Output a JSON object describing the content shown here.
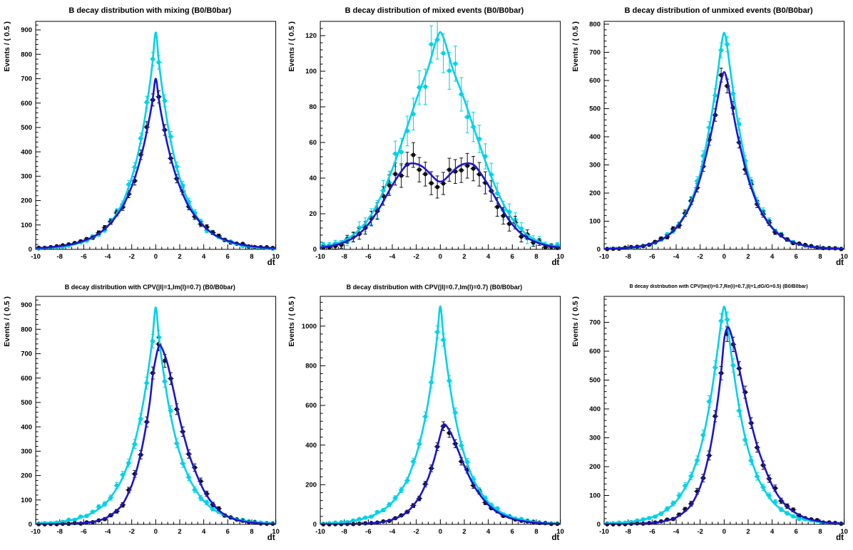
{
  "figure": {
    "background": "#ffffff"
  },
  "colors": {
    "cyan": "#00d2e8",
    "blue": "#1d14cf",
    "black": "#101010",
    "axis": "#000000"
  },
  "chart_data": {
    "type": "line",
    "x_grid": [
      -10,
      -9,
      -8,
      -7,
      -6,
      -5,
      -4,
      -3,
      -2.5,
      -2,
      -1.5,
      -1,
      -0.5,
      -0.25,
      0,
      0.25,
      0.5,
      1,
      1.5,
      2,
      2.5,
      3,
      4,
      5,
      6,
      7,
      8,
      9,
      10
    ],
    "marker_bin_width": 0.5,
    "plots": [
      {
        "title": "B decay distribution with mixing (B0/B0bar)",
        "xlabel": "dt",
        "ylabel": "Events / ( 0.5 )",
        "xlim": [
          -10,
          10
        ],
        "ylim": [
          0,
          935
        ],
        "xtick_step": 2,
        "ytick_step": 100,
        "ytick_max": 900,
        "series": [
          {
            "name": "model-sum",
            "color": "cyan",
            "y": [
              3,
              6,
              10,
              18,
              32,
              55,
              96,
              168,
              222,
              293,
              387,
              511,
              674,
              774,
              890,
              774,
              674,
              511,
              387,
              293,
              222,
              168,
              96,
              55,
              32,
              18,
              10,
              6,
              3
            ]
          },
          {
            "name": "model-b0",
            "color": "blue",
            "y": [
              5,
              8,
              13,
              21,
              35,
              57,
              95,
              156,
              200,
              258,
              331,
              425,
              545,
              618,
              700,
              618,
              545,
              425,
              331,
              258,
              200,
              156,
              95,
              57,
              35,
              21,
              13,
              8,
              5
            ]
          }
        ],
        "points": [
          {
            "name": "data-all",
            "color": "cyan",
            "follows": 0
          },
          {
            "name": "data-b0",
            "color": "black",
            "follows": 1
          }
        ]
      },
      {
        "title": "B decay distribution of mixed events (B0/B0bar)",
        "xlabel": "dt",
        "ylabel": "Events / ( 0.5 )",
        "xlim": [
          -10,
          10
        ],
        "ylim": [
          0,
          128
        ],
        "xtick_step": 2,
        "ytick_step": 20,
        "ytick_max": 120,
        "series": [
          {
            "name": "model-sum",
            "color": "cyan",
            "y": [
              1.2,
              2.5,
              5,
              9.5,
              17,
              29,
              45,
              64,
              74,
              84,
              93,
              102,
              114,
              119,
              122,
              119,
              114,
              102,
              93,
              84,
              74,
              64,
              45,
              29,
              17,
              9.5,
              5,
              2.5,
              1.2
            ]
          },
          {
            "name": "model-mixed",
            "color": "blue",
            "y": [
              1,
              2,
              4,
              7.5,
              14,
              24,
              36,
              46,
              48.2,
              48,
              46.5,
              43.5,
              40,
              38.5,
              38,
              38.5,
              40,
              43.5,
              46.5,
              48,
              48.2,
              46,
              36,
              24,
              14,
              7.5,
              4,
              2,
              1
            ]
          }
        ],
        "points": [
          {
            "name": "data-all",
            "color": "cyan",
            "follows": 0
          },
          {
            "name": "data-mixed",
            "color": "black",
            "follows": 1
          }
        ]
      },
      {
        "title": "B decay distribution of unmixed events (B0/B0bar)",
        "xlabel": "dt",
        "ylabel": "Events / ( 0.5 )",
        "xlim": [
          -10,
          10
        ],
        "ylim": [
          0,
          810
        ],
        "xtick_step": 2,
        "ytick_step": 100,
        "ytick_max": 800,
        "series": [
          {
            "name": "model-sum",
            "color": "cyan",
            "y": [
              1.5,
              3,
              6,
              11,
              21,
              40,
              78,
              145,
              200,
              270,
              370,
              490,
              640,
              720,
              770,
              720,
              640,
              490,
              370,
              270,
              200,
              145,
              78,
              40,
              21,
              11,
              6,
              3,
              1.5
            ]
          },
          {
            "name": "model-unmixed",
            "color": "blue",
            "y": [
              1.5,
              3,
              6,
              11,
              21,
              40,
              76,
              140,
              190,
              252,
              335,
              430,
              545,
              600,
              630,
              600,
              545,
              430,
              335,
              252,
              190,
              140,
              76,
              40,
              21,
              11,
              6,
              3,
              1.5
            ]
          }
        ],
        "points": [
          {
            "name": "data-all",
            "color": "cyan",
            "follows": 0
          },
          {
            "name": "data-unmixed",
            "color": "black",
            "follows": 1
          }
        ]
      },
      {
        "title": "B decay distribution with CPV(|l|=1,Im(l)=0.7) (B0/B0bar)",
        "xlabel": "dt",
        "ylabel": "Events / ( 0.5 )",
        "xlim": [
          -10,
          10
        ],
        "ylim": [
          0,
          935
        ],
        "xtick_step": 2,
        "ytick_step": 100,
        "ytick_max": 900,
        "series": [
          {
            "name": "model-sum",
            "color": "cyan",
            "y": [
              3,
              6,
              10,
              18,
              32,
              55,
              96,
              168,
              222,
              293,
              387,
              511,
              674,
              774,
              890,
              774,
              674,
              511,
              387,
              293,
              222,
              168,
              96,
              55,
              32,
              18,
              10,
              6,
              3
            ]
          },
          {
            "name": "model-b0",
            "color": "blue",
            "y": [
              0.4,
              0.8,
              1.5,
              3,
              6,
              13,
              30,
              68,
              105,
              160,
              240,
              350,
              500,
              610,
              680,
              730,
              725,
              655,
              545,
              430,
              335,
              255,
              140,
              70,
              32,
              15,
              7,
              3,
              1.5
            ]
          }
        ],
        "points": [
          {
            "name": "data-all",
            "color": "cyan",
            "follows": 0
          },
          {
            "name": "data-b0",
            "color": "black",
            "follows": 1
          }
        ]
      },
      {
        "title": "B decay distribution with CPV(|l|=0.7,Im(l)=0.7) (B0/B0bar)",
        "xlabel": "dt",
        "ylabel": "Events / ( 0.5 )",
        "xlim": [
          -10,
          10
        ],
        "ylim": [
          0,
          1150
        ],
        "xtick_step": 2,
        "ytick_step": 200,
        "ytick_max": 1000,
        "series": [
          {
            "name": "model-sum",
            "color": "cyan",
            "y": [
              4,
              6,
              11,
              20,
              36,
              63,
              112,
              198,
              264,
              351,
              467,
              621,
              827,
              954,
              1100,
              954,
              827,
              621,
              467,
              351,
              264,
              198,
              112,
              63,
              36,
              20,
              11,
              6,
              4
            ]
          },
          {
            "name": "model-b0",
            "color": "blue",
            "y": [
              0.3,
              0.6,
              1.2,
              2.5,
              5,
              11,
              24,
              52,
              78,
              115,
              165,
              235,
              330,
              390,
              450,
              500,
              498,
              445,
              370,
              295,
              230,
              175,
              98,
              53,
              28,
              15,
              8,
              4,
              2
            ]
          }
        ],
        "points": [
          {
            "name": "data-all",
            "color": "cyan",
            "follows": 0
          },
          {
            "name": "data-b0",
            "color": "black",
            "follows": 1
          }
        ]
      },
      {
        "title": "B decay distribution with CPV(Im(l)=0.7,Re(l)=0.7,|l|=1,dG/G=0.5) (B0/B0bar)",
        "xlabel": "dt",
        "ylabel": "Events / ( 0.5 )",
        "xlim": [
          -10,
          10
        ],
        "ylim": [
          0,
          790
        ],
        "xtick_step": 2,
        "ytick_step": 100,
        "ytick_max": 700,
        "series": [
          {
            "name": "model-sum",
            "color": "cyan",
            "y": [
              2.5,
              4.5,
              8,
              14,
              25,
              45,
              80,
              145,
              195,
              260,
              350,
              470,
              620,
              700,
              755,
              700,
              620,
              470,
              350,
              260,
              195,
              145,
              80,
              45,
              25,
              14,
              8,
              4.5,
              2.5
            ]
          },
          {
            "name": "model-b0",
            "color": "blue",
            "y": [
              0.3,
              0.6,
              1.2,
              2.5,
              5,
              11,
              24,
              55,
              85,
              130,
              200,
              300,
              440,
              530,
              640,
              680,
              670,
              590,
              490,
              395,
              310,
              240,
              135,
              72,
              38,
              19,
              10,
              5,
              2.5
            ]
          }
        ],
        "points": [
          {
            "name": "data-all",
            "color": "cyan",
            "follows": 0
          },
          {
            "name": "data-b0",
            "color": "black",
            "follows": 1
          }
        ]
      }
    ]
  }
}
